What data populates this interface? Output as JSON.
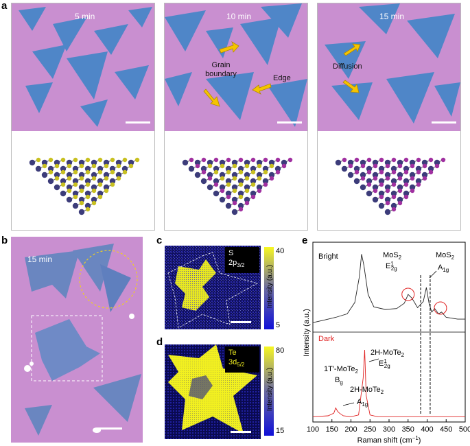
{
  "labels": {
    "a": "a",
    "b": "b",
    "c": "c",
    "d": "d",
    "e": "e"
  },
  "panel_a": {
    "times": [
      "5 min",
      "10 min",
      "15 min"
    ],
    "annotations": {
      "grain": "Grain\nboundary",
      "edge": "Edge",
      "diffusion": "Diffusion"
    }
  },
  "panel_b": {
    "time": "15 min"
  },
  "panel_c": {
    "element": "S",
    "orbital": "2p",
    "orbital_sub": "3/2",
    "cb_max": "40",
    "cb_min": "5",
    "cb_label": "Intensity (a.u.)"
  },
  "panel_d": {
    "element": "Te",
    "orbital": "3d",
    "orbital_sub": "5/2",
    "cb_max": "80",
    "cb_min": "15",
    "cb_label": "Intensity (a.u.)"
  },
  "colors": {
    "substrate": "#c98fd0",
    "flake": "#4f86c8",
    "arrow": "#f5c400",
    "bright": "#222222",
    "dark": "#e02020"
  },
  "chart_data": {
    "type": "line",
    "xlabel": "Raman shift (cm",
    "xlabel_sup": "−1",
    "xlabel_end": ")",
    "ylabel": "Intensity (a.u.)",
    "xlim": [
      100,
      500
    ],
    "xticks": [
      100,
      150,
      200,
      250,
      300,
      350,
      400,
      450,
      500
    ],
    "series": [
      {
        "name": "Bright",
        "x": [
          100,
          130,
          160,
          190,
          210,
          222,
          228,
          234,
          245,
          260,
          290,
          320,
          340,
          350,
          360,
          375,
          390,
          398,
          405,
          412,
          420,
          430,
          438,
          450,
          480,
          500
        ],
        "y": [
          0.1,
          0.13,
          0.16,
          0.2,
          0.33,
          0.62,
          0.88,
          0.75,
          0.42,
          0.28,
          0.25,
          0.26,
          0.32,
          0.42,
          0.38,
          0.27,
          0.34,
          0.5,
          0.32,
          0.22,
          0.26,
          0.2,
          0.22,
          0.16,
          0.14,
          0.14
        ]
      },
      {
        "name": "Dark",
        "x": [
          100,
          140,
          155,
          160,
          165,
          170,
          180,
          200,
          220,
          232,
          236,
          240,
          250,
          270,
          300,
          350,
          400,
          450,
          500
        ],
        "y": [
          0.06,
          0.07,
          0.1,
          0.16,
          0.12,
          0.1,
          0.07,
          0.06,
          0.08,
          0.5,
          0.82,
          0.3,
          0.08,
          0.06,
          0.06,
          0.06,
          0.06,
          0.06,
          0.06
        ]
      }
    ],
    "dashed_lines": [
      383,
      408
    ],
    "circled_peaks": [
      350,
      435
    ],
    "annotations": {
      "bright": "Bright",
      "dark": "Dark",
      "mos2_e": "MoS",
      "mos2_e_sub": "2",
      "mos2_e_mode": "E",
      "mos2_e_sup": "1",
      "mos2_e_modesub": "2g",
      "mos2_a": "MoS",
      "mos2_a_sub": "2",
      "mos2_a_mode": "A",
      "mos2_a_modesub": "1g",
      "h_e": "2H-MoTe",
      "h_e_sub": "2",
      "h_e_mode": "E",
      "h_e_sup": "1",
      "h_e_modesub": "2g",
      "t_b": "1T′-MoTe",
      "t_b_sub": "2",
      "t_b_mode": "B",
      "t_b_modesub": "g",
      "h_a": "2H-MoTe",
      "h_a_sub": "2",
      "h_a_mode": "A",
      "h_a_modesub": "1g"
    }
  }
}
